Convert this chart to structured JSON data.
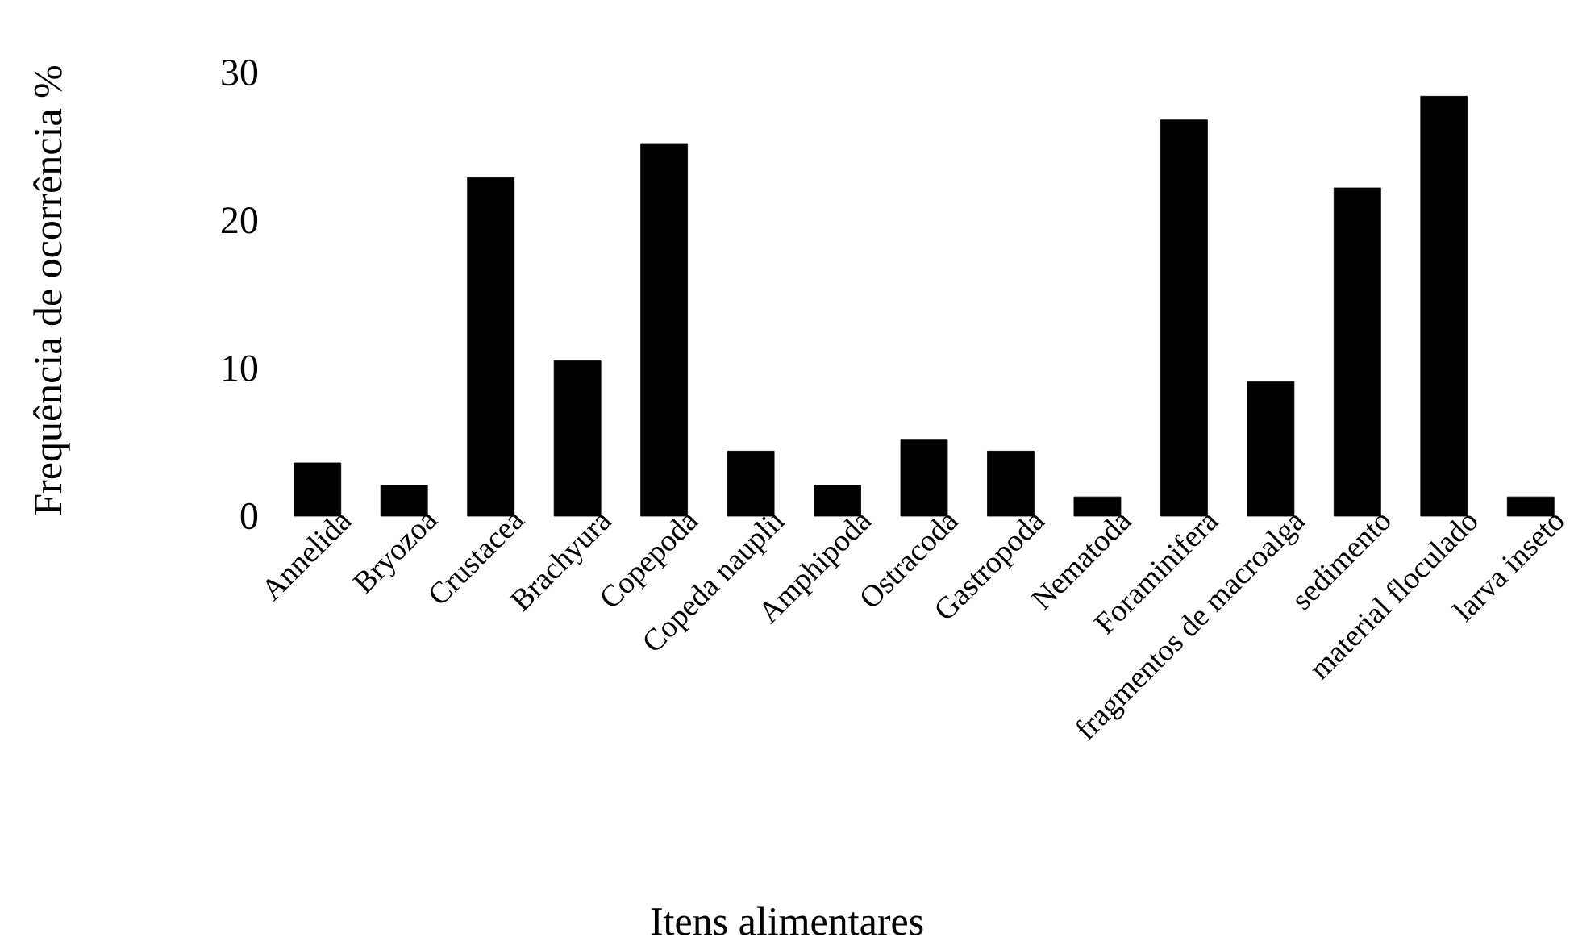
{
  "chart_data": {
    "type": "bar",
    "xlabel": "Itens alimentares",
    "ylabel": "Frequência de ocorrência %",
    "categories": [
      "Annelida",
      "Bryozoa",
      "Crustacea",
      "Brachyura",
      "Copepoda",
      "Copeda nauplii",
      "Amphipoda",
      "Ostracoda",
      "Gastropoda",
      "Nematoda",
      "Foraminifera",
      "fragmentos de macroalga",
      "sedimento",
      "material floculado",
      "larva inseto"
    ],
    "values": [
      3.6,
      2.1,
      22.9,
      10.5,
      25.2,
      4.4,
      2.1,
      5.2,
      4.4,
      1.3,
      26.8,
      9.1,
      22.2,
      28.4,
      1.3
    ],
    "color": "#000000",
    "ylim": [
      0,
      30
    ],
    "yticks": [
      0,
      10,
      20,
      30
    ]
  }
}
